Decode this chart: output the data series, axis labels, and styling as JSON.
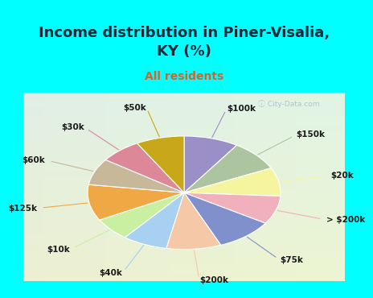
{
  "title": "Income distribution in Piner-Visalia,\nKY (%)",
  "subtitle": "All residents",
  "bg_cyan": "#00FFFF",
  "bg_chart_tl": "#e0f5f0",
  "bg_chart_br": "#d8edd8",
  "labels": [
    "$100k",
    "$150k",
    "$20k",
    "> $200k",
    "$75k",
    "$200k",
    "$40k",
    "$10k",
    "$125k",
    "$60k",
    "$30k",
    "$50k"
  ],
  "sizes": [
    8.5,
    8.0,
    7.5,
    7.5,
    9.0,
    8.5,
    7.0,
    6.0,
    9.5,
    7.0,
    6.5,
    7.5
  ],
  "colors": [
    "#9b8fc8",
    "#adc4a0",
    "#f5f5a0",
    "#f0b0bc",
    "#8090cc",
    "#f5c8a8",
    "#a8d0f0",
    "#c8f0a0",
    "#f0a845",
    "#c8b89a",
    "#dd8898",
    "#c8a818"
  ],
  "startangle": 90,
  "title_color": "#1a2a3a",
  "subtitle_color": "#cc6633",
  "title_fontsize": 13,
  "subtitle_fontsize": 10,
  "label_fontsize": 7.5,
  "wedge_linewidth": 0.8,
  "wedge_edgecolor": "#ffffff"
}
